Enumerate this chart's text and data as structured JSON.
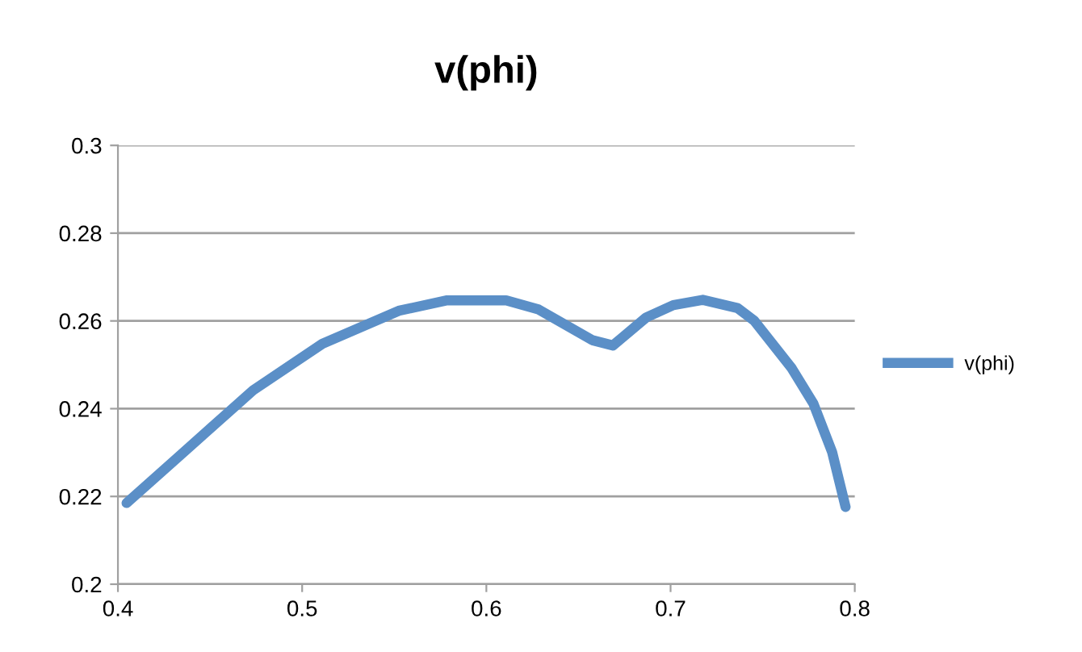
{
  "chart_data": {
    "type": "line",
    "title": "v(phi)",
    "series": [
      {
        "name": "v(phi)",
        "color": "#5b8fc7",
        "x": [
          0.4047,
          0.4325,
          0.4734,
          0.511,
          0.5524,
          0.5787,
          0.6108,
          0.6284,
          0.6576,
          0.6687,
          0.6868,
          0.7015,
          0.7175,
          0.7365,
          0.7453,
          0.7658,
          0.7775,
          0.7877,
          0.795
        ],
        "values": [
          0.2185,
          0.2289,
          0.2442,
          0.2548,
          0.2623,
          0.2647,
          0.2647,
          0.2626,
          0.2556,
          0.2544,
          0.2608,
          0.2636,
          0.2648,
          0.2629,
          0.2601,
          0.2492,
          0.2412,
          0.2301,
          0.2176
        ]
      }
    ],
    "xlim": [
      0.4,
      0.8
    ],
    "xticks": [
      0.4,
      0.5,
      0.6,
      0.7,
      0.8
    ],
    "ylim": [
      0.2,
      0.3
    ],
    "yticks": [
      0.2,
      0.22,
      0.24,
      0.26,
      0.28,
      0.3
    ],
    "grid": "y",
    "legend": "right",
    "marker": "none",
    "line_style": "solid"
  }
}
